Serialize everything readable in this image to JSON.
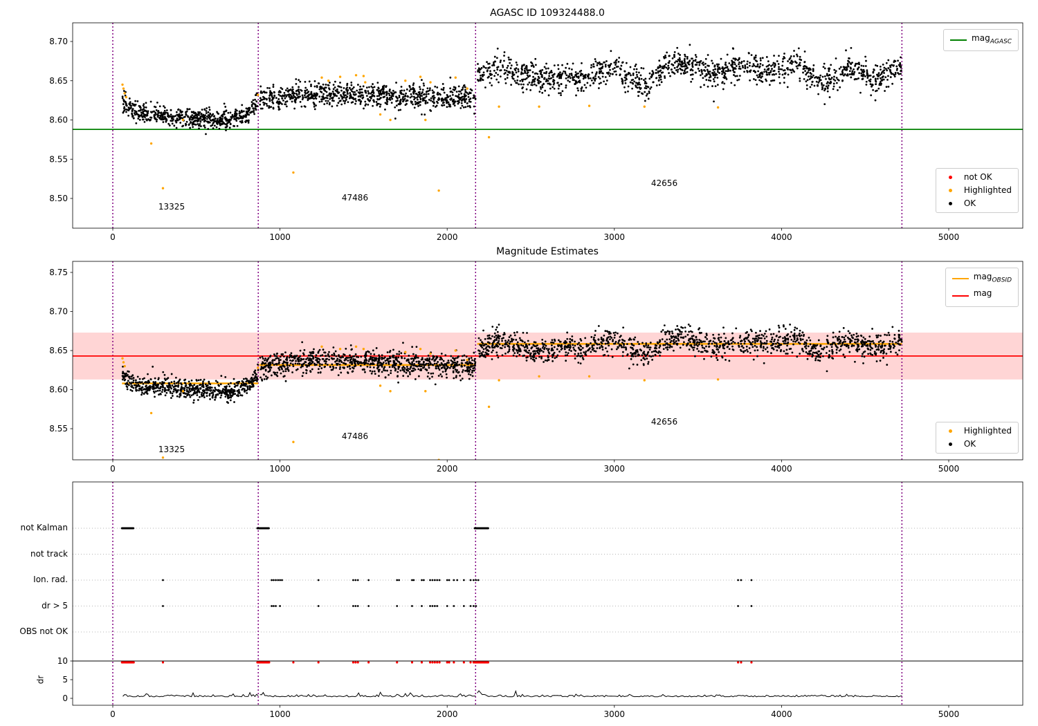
{
  "colors": {
    "ok": "#000000",
    "highlighted": "#ffa500",
    "not_ok": "#ff0000",
    "mag_agasc": "#008000",
    "mag": "#ff0000",
    "mag_obsid": "#ffa500",
    "boundary": "#800080",
    "band": "#ffb3b3",
    "grid": "#b3b3b3"
  },
  "chart_data": [
    {
      "panel": "agasc",
      "type": "scatter",
      "title": "AGASC ID 109324488.0",
      "xlim": [
        -240,
        5442
      ],
      "ylim": [
        8.462,
        8.724
      ],
      "xticks": [
        0,
        1000,
        2000,
        3000,
        4000,
        5000
      ],
      "yticks": [
        8.5,
        8.55,
        8.6,
        8.65,
        8.7
      ],
      "mag_agasc": 8.588,
      "boundaries": [
        0,
        870,
        2170,
        4720
      ],
      "annotations": [
        {
          "label": "13325",
          "x": 350,
          "y": 8.494
        },
        {
          "label": "47486",
          "x": 1450,
          "y": 8.503
        },
        {
          "label": "42656",
          "x": 3300,
          "y": 8.522
        }
      ],
      "segments": [
        {
          "obsid": "13325",
          "x0": 58,
          "x1": 870,
          "n": 620,
          "noise": 0.006,
          "seed": 7,
          "ctrl": [
            [
              58,
              8.625
            ],
            [
              120,
              8.612
            ],
            [
              250,
              8.607
            ],
            [
              420,
              8.603
            ],
            [
              600,
              8.601
            ],
            [
              700,
              8.599
            ],
            [
              780,
              8.604
            ],
            [
              840,
              8.615
            ],
            [
              870,
              8.626
            ]
          ]
        },
        {
          "obsid": "47486",
          "x0": 878,
          "x1": 2170,
          "n": 860,
          "noise": 0.0075,
          "seed": 11,
          "ctrl": [
            [
              878,
              8.624
            ],
            [
              950,
              8.628
            ],
            [
              1100,
              8.632
            ],
            [
              1400,
              8.633
            ],
            [
              1700,
              8.63
            ],
            [
              1900,
              8.629
            ],
            [
              2170,
              8.627
            ]
          ]
        },
        {
          "obsid": "42656",
          "x0": 2180,
          "x1": 4720,
          "n": 1350,
          "noise": 0.009,
          "seed": 13,
          "ctrl": [
            [
              2180,
              8.655
            ],
            [
              2300,
              8.668
            ],
            [
              2400,
              8.66
            ],
            [
              2500,
              8.655
            ],
            [
              2600,
              8.652
            ],
            [
              2700,
              8.656
            ],
            [
              2800,
              8.65
            ],
            [
              2900,
              8.662
            ],
            [
              3000,
              8.668
            ],
            [
              3100,
              8.655
            ],
            [
              3200,
              8.644
            ],
            [
              3300,
              8.668
            ],
            [
              3400,
              8.672
            ],
            [
              3500,
              8.668
            ],
            [
              3600,
              8.655
            ],
            [
              3700,
              8.665
            ],
            [
              3800,
              8.668
            ],
            [
              3900,
              8.662
            ],
            [
              4000,
              8.668
            ],
            [
              4100,
              8.672
            ],
            [
              4150,
              8.66
            ],
            [
              4200,
              8.65
            ],
            [
              4300,
              8.655
            ],
            [
              4400,
              8.668
            ],
            [
              4500,
              8.66
            ],
            [
              4550,
              8.65
            ],
            [
              4600,
              8.655
            ],
            [
              4700,
              8.668
            ]
          ]
        }
      ],
      "highlighted": [
        [
          58,
          8.645
        ],
        [
          64,
          8.64
        ],
        [
          71,
          8.634
        ],
        [
          80,
          8.629
        ],
        [
          230,
          8.57
        ],
        [
          300,
          8.513
        ],
        [
          420,
          8.6
        ],
        [
          868,
          8.632
        ],
        [
          1080,
          8.533
        ],
        [
          1250,
          8.654
        ],
        [
          1290,
          8.65
        ],
        [
          1360,
          8.655
        ],
        [
          1455,
          8.657
        ],
        [
          1500,
          8.656
        ],
        [
          1510,
          8.648
        ],
        [
          1600,
          8.607
        ],
        [
          1660,
          8.6
        ],
        [
          1750,
          8.65
        ],
        [
          1840,
          8.655
        ],
        [
          1870,
          8.6
        ],
        [
          1900,
          8.648
        ],
        [
          1950,
          8.51
        ],
        [
          2050,
          8.654
        ],
        [
          2120,
          8.64
        ],
        [
          2250,
          8.578
        ],
        [
          2310,
          8.617
        ],
        [
          2550,
          8.617
        ],
        [
          2850,
          8.618
        ],
        [
          3180,
          8.617
        ],
        [
          3620,
          8.616
        ]
      ]
    },
    {
      "panel": "estimates",
      "type": "scatter",
      "title": "Magnitude Estimates",
      "xlim": [
        -240,
        5442
      ],
      "ylim": [
        8.51,
        8.764
      ],
      "xticks": [
        0,
        1000,
        2000,
        3000,
        4000,
        5000
      ],
      "yticks": [
        8.55,
        8.6,
        8.65,
        8.7,
        8.75
      ],
      "mag": 8.643,
      "band": [
        8.613,
        8.673
      ],
      "mag_obsid_steps": [
        {
          "x0": 55,
          "x1": 870,
          "y": 8.608
        },
        {
          "x0": 876,
          "x1": 2170,
          "y": 8.6315
        },
        {
          "x0": 2180,
          "x1": 4720,
          "y": 8.6585
        }
      ],
      "boundaries": [
        0,
        870,
        2170,
        4720
      ],
      "annotations": [
        {
          "label": "13325",
          "x": 350,
          "y": 8.528
        },
        {
          "label": "47486",
          "x": 1450,
          "y": 8.545
        },
        {
          "label": "42656",
          "x": 3300,
          "y": 8.563
        }
      ],
      "segments": [
        {
          "obsid": "13325",
          "x0": 58,
          "x1": 870,
          "n": 620,
          "noise": 0.006,
          "seed": 21,
          "ctrl": [
            [
              58,
              8.618
            ],
            [
              120,
              8.608
            ],
            [
              250,
              8.604
            ],
            [
              420,
              8.601
            ],
            [
              600,
              8.599
            ],
            [
              700,
              8.597
            ],
            [
              780,
              8.602
            ],
            [
              840,
              8.612
            ],
            [
              870,
              8.622
            ]
          ]
        },
        {
          "obsid": "47486",
          "x0": 878,
          "x1": 2170,
          "n": 860,
          "noise": 0.0075,
          "seed": 22,
          "ctrl": [
            [
              878,
              8.628
            ],
            [
              950,
              8.632
            ],
            [
              1100,
              8.636
            ],
            [
              1400,
              8.637
            ],
            [
              1700,
              8.634
            ],
            [
              1900,
              8.632
            ],
            [
              2170,
              8.63
            ]
          ]
        },
        {
          "obsid": "42656",
          "x0": 2180,
          "x1": 4720,
          "n": 1350,
          "noise": 0.008,
          "seed": 23,
          "ctrl": [
            [
              2180,
              8.652
            ],
            [
              2300,
              8.662
            ],
            [
              2400,
              8.656
            ],
            [
              2500,
              8.65
            ],
            [
              2600,
              8.648
            ],
            [
              2700,
              8.655
            ],
            [
              2800,
              8.648
            ],
            [
              2900,
              8.66
            ],
            [
              3000,
              8.663
            ],
            [
              3100,
              8.652
            ],
            [
              3200,
              8.642
            ],
            [
              3300,
              8.663
            ],
            [
              3400,
              8.666
            ],
            [
              3500,
              8.66
            ],
            [
              3600,
              8.652
            ],
            [
              3700,
              8.66
            ],
            [
              3800,
              8.662
            ],
            [
              3900,
              8.658
            ],
            [
              4000,
              8.662
            ],
            [
              4100,
              8.666
            ],
            [
              4150,
              8.656
            ],
            [
              4200,
              8.648
            ],
            [
              4300,
              8.652
            ],
            [
              4400,
              8.662
            ],
            [
              4500,
              8.656
            ],
            [
              4600,
              8.652
            ],
            [
              4700,
              8.662
            ]
          ]
        }
      ],
      "highlighted": [
        [
          58,
          8.64
        ],
        [
          64,
          8.635
        ],
        [
          71,
          8.63
        ],
        [
          230,
          8.57
        ],
        [
          300,
          8.513
        ],
        [
          420,
          8.598
        ],
        [
          868,
          8.628
        ],
        [
          1080,
          8.533
        ],
        [
          1250,
          8.655
        ],
        [
          1360,
          8.652
        ],
        [
          1455,
          8.655
        ],
        [
          1500,
          8.652
        ],
        [
          1600,
          8.605
        ],
        [
          1660,
          8.598
        ],
        [
          1750,
          8.648
        ],
        [
          1840,
          8.652
        ],
        [
          1870,
          8.598
        ],
        [
          1900,
          8.646
        ],
        [
          1950,
          8.51
        ],
        [
          2050,
          8.65
        ],
        [
          2120,
          8.638
        ],
        [
          2250,
          8.578
        ],
        [
          2310,
          8.612
        ],
        [
          2550,
          8.617
        ],
        [
          2850,
          8.617
        ],
        [
          3180,
          8.612
        ],
        [
          3620,
          8.613
        ]
      ]
    },
    {
      "panel": "flags",
      "type": "scatter",
      "xticks": [
        0,
        1000,
        2000,
        3000,
        4000,
        5000
      ],
      "boundaries": [
        0,
        870,
        2170,
        4720
      ],
      "rows": [
        {
          "label": "not Kalman",
          "clusters": [
            [
              55,
              125
            ],
            [
              865,
              935
            ],
            [
              2165,
              2245
            ]
          ],
          "step": 4,
          "xs": []
        },
        {
          "label": "not track",
          "clusters": [],
          "step": 4,
          "xs": []
        },
        {
          "label": "Ion. rad.",
          "clusters": [],
          "step": 4,
          "xs": [
            300,
            950,
            962,
            975,
            988,
            1000,
            1012,
            1230,
            1438,
            1452,
            1466,
            1530,
            1700,
            1712,
            1790,
            1800,
            1848,
            1860,
            1898,
            1912,
            1926,
            1940,
            1954,
            2000,
            2012,
            2040,
            2060,
            2100,
            2140,
            2158,
            2172,
            2186,
            3740,
            3758,
            3820
          ]
        },
        {
          "label": "dr > 5",
          "clusters": [],
          "step": 4,
          "xs": [
            300,
            950,
            962,
            975,
            1000,
            1230,
            1438,
            1452,
            1466,
            1530,
            1700,
            1790,
            1848,
            1898,
            1912,
            1926,
            1940,
            2000,
            2040,
            2100,
            2140,
            2158,
            2172,
            3740,
            3820
          ]
        },
        {
          "label": "OBS not OK",
          "clusters": [],
          "step": 4,
          "xs": []
        }
      ],
      "dr": {
        "ylabel": "dr",
        "ticks": [
          10,
          5,
          0
        ],
        "clip_line": 10,
        "red_ranges": [
          [
            55,
            125
          ],
          [
            865,
            935
          ],
          [
            2165,
            2245
          ]
        ],
        "red_step": 5,
        "red_xs": [
          300,
          1080,
          1230,
          1438,
          1452,
          1466,
          1530,
          1700,
          1790,
          1848,
          1898,
          1912,
          1926,
          1940,
          1954,
          2000,
          2012,
          2040,
          2100,
          2140,
          2158,
          3740,
          3758,
          3820
        ],
        "trace_segments": [
          {
            "x0": 60,
            "x1": 870,
            "seed": 31,
            "onset": 0
          },
          {
            "x0": 880,
            "x1": 2170,
            "seed": 32,
            "onset": 0.5
          },
          {
            "x0": 2180,
            "x1": 4720,
            "seed": 33,
            "onset": 1.0
          }
        ],
        "trace_base": 0.4,
        "trace_noise": 0.28
      }
    }
  ],
  "legends": {
    "agasc_top": {
      "items": [
        {
          "main": "mag",
          "sub": "AGASC"
        }
      ]
    },
    "agasc_bottom": {
      "items": [
        {
          "label": "not OK"
        },
        {
          "label": "Highlighted"
        },
        {
          "label": "OK"
        }
      ]
    },
    "est_top": {
      "items": [
        {
          "main": "mag",
          "sub": "OBSID"
        },
        {
          "main": "mag",
          "sub": ""
        }
      ]
    },
    "est_bottom": {
      "items": [
        {
          "label": "Highlighted"
        },
        {
          "label": "OK"
        }
      ]
    }
  }
}
